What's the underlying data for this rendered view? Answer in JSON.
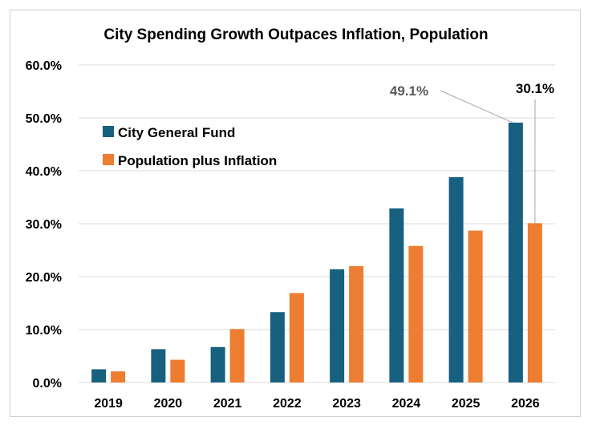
{
  "chart_data": {
    "type": "bar",
    "title": "City Spending Growth Outpaces Inflation, Population",
    "categories": [
      "2019",
      "2020",
      "2021",
      "2022",
      "2023",
      "2024",
      "2025",
      "2026"
    ],
    "series": [
      {
        "name": "City General Fund",
        "color": "#17607f",
        "values": [
          2.5,
          6.3,
          6.7,
          13.3,
          21.4,
          32.9,
          38.8,
          49.1
        ]
      },
      {
        "name": "Population plus Inflation",
        "color": "#ed7d31",
        "values": [
          2.1,
          4.3,
          10.1,
          16.9,
          22.0,
          25.8,
          28.7,
          30.1
        ]
      }
    ],
    "ylim": [
      0,
      60
    ],
    "yticks": [
      "0.0%",
      "10.0%",
      "20.0%",
      "30.0%",
      "40.0%",
      "50.0%",
      "60.0%"
    ],
    "grid": true,
    "legend": "top-left",
    "annotations": [
      {
        "text": "49.1%",
        "color": "#595959",
        "series": 0,
        "category": "2026"
      },
      {
        "text": "30.1%",
        "color": "#000000",
        "series": 1,
        "category": "2026"
      }
    ]
  }
}
